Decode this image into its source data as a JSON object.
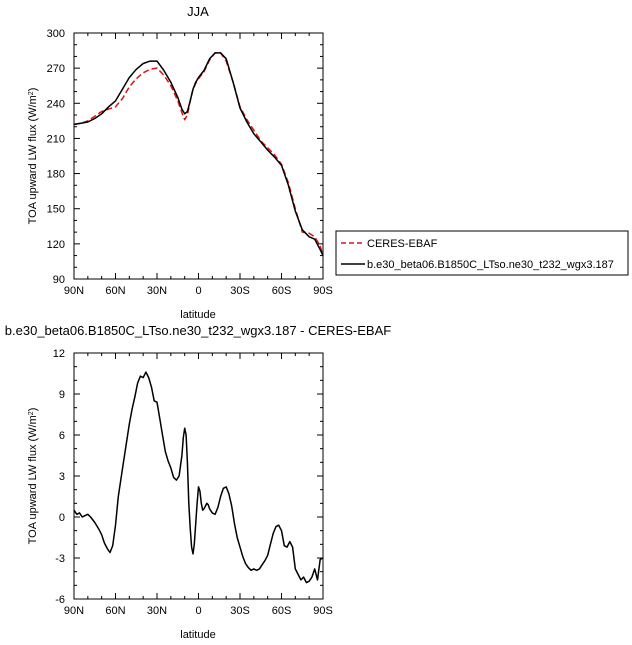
{
  "chart_data": [
    {
      "type": "line",
      "title": "JJA",
      "xlabel": "latitude",
      "ylabel_main": "TOA upward LW flux (W/m",
      "ylabel_sup": "2",
      "ylabel_close": ")",
      "xlim": [
        90,
        -90
      ],
      "ylim": [
        90,
        300
      ],
      "x_ticks": [
        90,
        60,
        30,
        0,
        -30,
        -60,
        -90
      ],
      "x_tick_labels": [
        "90N",
        "60N",
        "30N",
        "0",
        "30S",
        "60S",
        "90S"
      ],
      "y_ticks": [
        90,
        120,
        150,
        180,
        210,
        240,
        270,
        300
      ],
      "y_tick_labels": [
        "90",
        "120",
        "150",
        "180",
        "210",
        "240",
        "270",
        "300"
      ],
      "legend_placement": "right",
      "series": [
        {
          "name": "CERES-EBAF",
          "color": "#e01010",
          "dash": "dashed",
          "x": [
            90,
            85,
            80,
            75,
            70,
            65,
            60,
            55,
            50,
            45,
            40,
            35,
            30,
            25,
            20,
            15,
            12,
            10,
            8,
            6,
            4,
            2,
            0,
            -4,
            -8,
            -12,
            -16,
            -20,
            -25,
            -30,
            -35,
            -40,
            -45,
            -50,
            -55,
            -60,
            -65,
            -70,
            -75,
            -80,
            -84,
            -88,
            -90
          ],
          "y": [
            222,
            223,
            225,
            229,
            233,
            235,
            237,
            244,
            254,
            261,
            266,
            269,
            270,
            264,
            255,
            242,
            232,
            226,
            230,
            242,
            252,
            257,
            261,
            267,
            277,
            283,
            283,
            276,
            258,
            237,
            226,
            217,
            208,
            202,
            196,
            188,
            172,
            150,
            130,
            129,
            126,
            118,
            110
          ]
        },
        {
          "name": "b.e30_beta06.B1850C_LTso.ne30_t232_wgx3.187",
          "color": "#000000",
          "dash": "solid",
          "x": [
            90,
            85,
            80,
            75,
            70,
            65,
            60,
            55,
            50,
            45,
            40,
            35,
            30,
            25,
            20,
            15,
            12,
            10,
            8,
            6,
            4,
            2,
            0,
            -4,
            -8,
            -12,
            -16,
            -20,
            -25,
            -30,
            -35,
            -40,
            -45,
            -50,
            -55,
            -60,
            -65,
            -70,
            -75,
            -80,
            -84,
            -88,
            -90
          ],
          "y": [
            222,
            223,
            224,
            227,
            231,
            237,
            242,
            252,
            262,
            269,
            274,
            276,
            276,
            268,
            258,
            245,
            235,
            231,
            233,
            242,
            252,
            258,
            262,
            268,
            278,
            283,
            283,
            278,
            258,
            236,
            224,
            214,
            207,
            200,
            194,
            187,
            170,
            148,
            132,
            126,
            124,
            115,
            110
          ]
        }
      ]
    },
    {
      "type": "line",
      "title": "b.e30_beta06.B1850C_LTso.ne30_t232_wgx3.187 - CERES-EBAF",
      "xlabel": "latitude",
      "ylabel_main": "TOA upward LW flux (W/m",
      "ylabel_sup": "2",
      "ylabel_close": ")",
      "xlim": [
        90,
        -90
      ],
      "ylim": [
        -6,
        12
      ],
      "x_ticks": [
        90,
        60,
        30,
        0,
        -30,
        -60,
        -90
      ],
      "x_tick_labels": [
        "90N",
        "60N",
        "30N",
        "0",
        "30S",
        "60S",
        "90S"
      ],
      "y_ticks": [
        -6,
        -3,
        0,
        3,
        6,
        9,
        12
      ],
      "y_tick_labels": [
        "-6",
        "-3",
        "0",
        "3",
        "6",
        "9",
        "12"
      ],
      "series": [
        {
          "color": "#000000",
          "dash": "solid",
          "x": [
            90,
            88,
            86,
            84,
            82,
            80,
            78,
            75,
            72,
            70,
            68,
            66,
            64,
            62,
            60,
            58,
            55,
            52,
            50,
            48,
            46,
            44,
            42,
            40,
            38,
            36,
            34,
            32,
            30,
            28,
            26,
            24,
            22,
            20,
            18,
            16,
            14,
            12,
            11,
            10,
            9,
            8,
            7,
            6,
            5,
            4,
            3,
            2,
            1,
            0,
            -1,
            -2,
            -3,
            -4,
            -5,
            -6,
            -7,
            -8,
            -10,
            -12,
            -14,
            -16,
            -18,
            -20,
            -22,
            -24,
            -26,
            -28,
            -30,
            -32,
            -34,
            -36,
            -38,
            -40,
            -42,
            -44,
            -46,
            -48,
            -50,
            -52,
            -54,
            -56,
            -58,
            -60,
            -62,
            -64,
            -66,
            -68,
            -70,
            -72,
            -74,
            -76,
            -78,
            -80,
            -82,
            -84,
            -86,
            -88,
            -90
          ],
          "y": [
            0.5,
            0.2,
            0.3,
            0.0,
            0.1,
            0.2,
            0.0,
            -0.4,
            -0.9,
            -1.3,
            -1.9,
            -2.3,
            -2.6,
            -2.1,
            -0.6,
            1.5,
            3.5,
            5.5,
            6.8,
            7.9,
            8.8,
            9.8,
            10.3,
            10.2,
            10.6,
            10.2,
            9.5,
            8.5,
            8.4,
            7.2,
            6.0,
            4.8,
            4.1,
            3.6,
            2.9,
            2.7,
            3.0,
            4.5,
            5.8,
            6.5,
            6.0,
            4.0,
            1.0,
            -0.8,
            -2.2,
            -2.7,
            -2.0,
            -0.5,
            1.0,
            2.2,
            1.9,
            1.0,
            0.5,
            0.6,
            0.8,
            1.0,
            0.9,
            0.6,
            0.3,
            0.2,
            0.7,
            1.5,
            2.1,
            2.2,
            1.7,
            0.8,
            -0.5,
            -1.5,
            -2.2,
            -2.9,
            -3.4,
            -3.7,
            -3.9,
            -3.8,
            -3.9,
            -3.8,
            -3.5,
            -3.2,
            -2.8,
            -2.0,
            -1.2,
            -0.7,
            -0.6,
            -1.0,
            -2.1,
            -2.2,
            -1.8,
            -2.2,
            -3.8,
            -4.2,
            -4.6,
            -4.4,
            -4.8,
            -4.7,
            -4.4,
            -3.8,
            -4.6,
            -3.1,
            -3.0
          ]
        }
      ]
    }
  ]
}
